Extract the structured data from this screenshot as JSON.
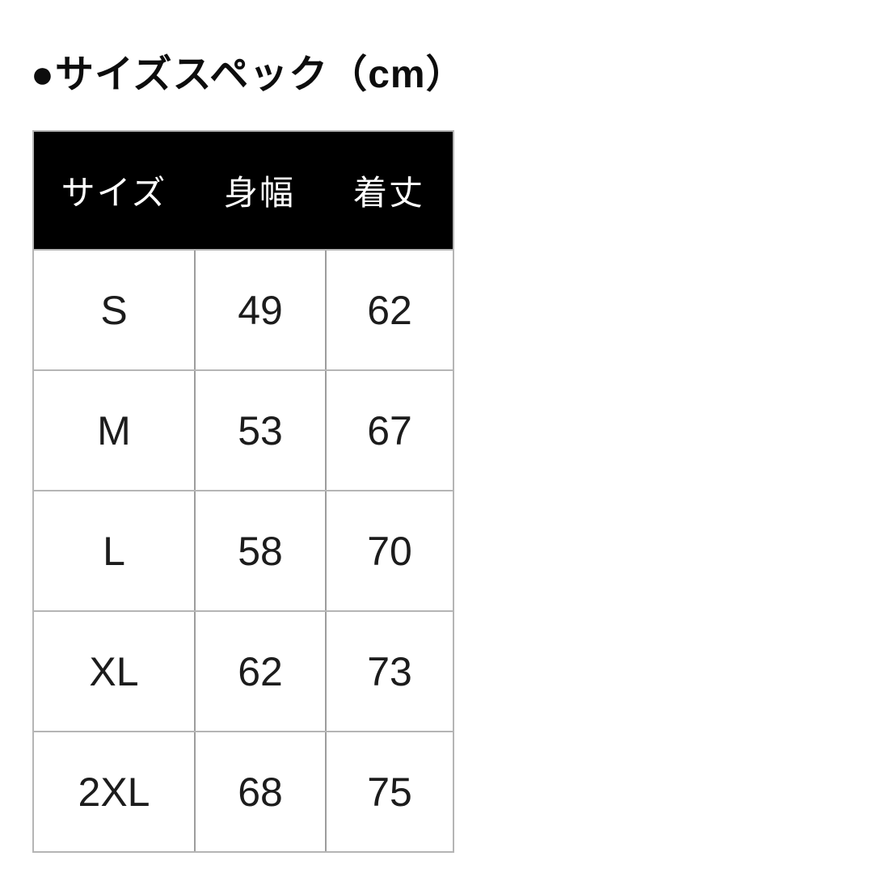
{
  "page": {
    "title": "●サイズスペック（cm）",
    "background": "#ffffff"
  },
  "chart_data": {
    "type": "table",
    "title": "サイズスペック",
    "unit": "cm",
    "columns": [
      "サイズ",
      "身幅",
      "着丈"
    ],
    "rows": [
      [
        "S",
        "49",
        "62"
      ],
      [
        "M",
        "53",
        "67"
      ],
      [
        "L",
        "58",
        "70"
      ],
      [
        "XL",
        "62",
        "73"
      ],
      [
        "2XL",
        "68",
        "75"
      ]
    ]
  },
  "colors": {
    "header_bg": "#000000",
    "header_text": "#ffffff",
    "body_text": "#1c1c1c",
    "border": "#b5b5b5",
    "column_divider": "#9d9d9d"
  }
}
